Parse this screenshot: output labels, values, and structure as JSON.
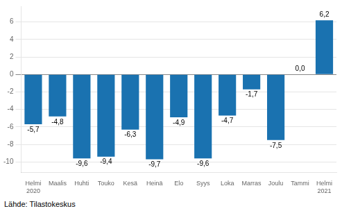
{
  "chart_data": {
    "type": "bar",
    "categories": [
      "Helmi\n2020",
      "Maalis",
      "Huhti",
      "Touko",
      "Kesä",
      "Heinä",
      "Elo",
      "Syys",
      "Loka",
      "Marras",
      "Joulu",
      "Tammi",
      "Helmi\n2021"
    ],
    "values": [
      -5.7,
      -4.8,
      -9.6,
      -9.4,
      -6.3,
      -9.7,
      -4.9,
      -9.6,
      -4.7,
      -1.7,
      -7.5,
      0.0,
      6.2
    ],
    "value_labels": [
      "-5,7",
      "-4,8",
      "-9,6",
      "-9,4",
      "-6,3",
      "-9,7",
      "-4,9",
      "-9,6",
      "-4,7",
      "-1,7",
      "-7,5",
      "0,0",
      "6,2"
    ],
    "data_labels": true,
    "color": "#1a72b0",
    "ylim": [
      -11.2,
      7.8
    ],
    "yticks": [
      -10,
      -8,
      -6,
      -4,
      -2,
      0,
      2,
      4,
      6
    ],
    "grid": true,
    "annotation": "Lähde: Tilastokeskus"
  }
}
